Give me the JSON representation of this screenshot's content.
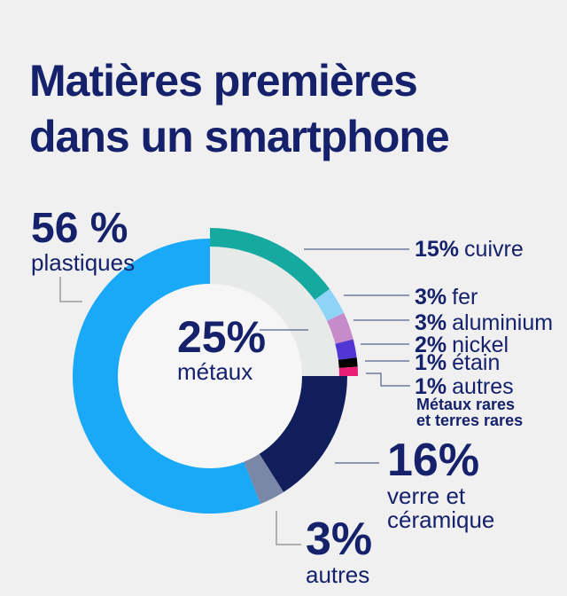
{
  "page": {
    "background_color": "#f0f0f1",
    "title_lines": [
      "Matières premières",
      "dans un smartphone"
    ]
  },
  "colors": {
    "title_navy": "#15226b",
    "donut_hole": "#f6f6f7",
    "connector_gray": "#9b9b9b",
    "connector_blue": "#55608c"
  },
  "chart_data": {
    "type": "donut",
    "title": "Matières premières dans un smartphone",
    "units": "%",
    "clockwise_from_top": true,
    "center_label": {
      "value": "25%",
      "label": "métaux"
    },
    "segments": [
      {
        "label": "métaux",
        "pct": 25,
        "value_label": "25%",
        "color": "#e8e9e9",
        "children": [
          {
            "label": "cuivre",
            "pct": 15,
            "value_label": "15%",
            "color": "#16a99f"
          },
          {
            "label": "fer",
            "pct": 3,
            "value_label": "3%",
            "color": "#8dd4f6"
          },
          {
            "label": "aluminium",
            "pct": 3,
            "value_label": "3%",
            "color": "#c68bc8"
          },
          {
            "label": "nickel",
            "pct": 2,
            "value_label": "2%",
            "color": "#5136d4"
          },
          {
            "label": "étain",
            "pct": 1,
            "value_label": "1%",
            "color": "#000000"
          },
          {
            "label": "autres",
            "pct": 1,
            "value_label": "1%",
            "color": "#ea1e74",
            "note_lines": [
              "Métaux rares",
              "et terres rares"
            ]
          }
        ]
      },
      {
        "label": "verre et céramique",
        "pct": 16,
        "value_label": "16%",
        "color": "#111e5c",
        "label_lines": [
          "verre et",
          "céramique"
        ]
      },
      {
        "label": "autres",
        "pct": 3,
        "value_label": "3%",
        "color": "#7b87a7"
      },
      {
        "label": "plastiques",
        "pct": 56,
        "value_label": "56 %",
        "color": "#1aa8f8"
      }
    ]
  }
}
